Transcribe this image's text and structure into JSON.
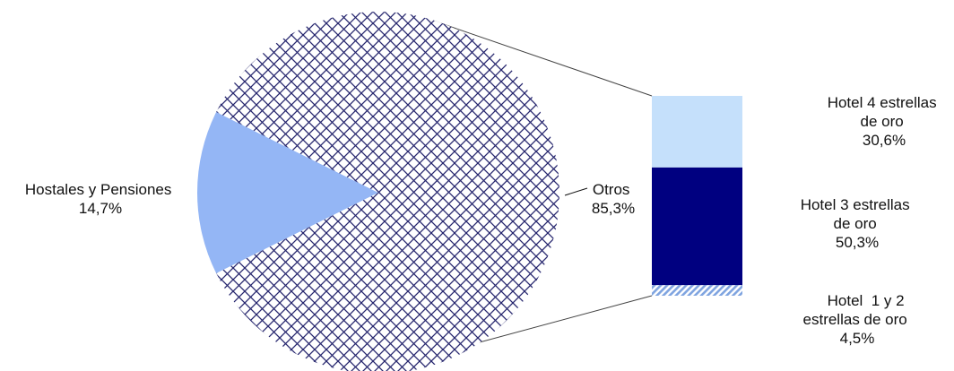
{
  "chart_data": {
    "type": "bar-of-pie",
    "title": "",
    "pie": {
      "slices": [
        {
          "label": "Hostales y Pensiones",
          "value_label": "14,7%",
          "value": 14.7,
          "color": "#94b6f5",
          "pattern": "solid"
        },
        {
          "label": "Otros",
          "value_label": "85,3%",
          "value": 85.3,
          "color": "#24246e",
          "pattern": "brick-crosshatch"
        }
      ]
    },
    "bar": {
      "segments": [
        {
          "label_lines": [
            "Hotel 4 estrellas",
            "de oro"
          ],
          "value_label": "30,6%",
          "value": 30.6,
          "color": "#c5e0fb",
          "pattern": "solid"
        },
        {
          "label_lines": [
            "Hotel 3 estrellas",
            "de oro"
          ],
          "value_label": "50,3%",
          "value": 50.3,
          "color": "#000080",
          "pattern": "solid"
        },
        {
          "label_lines": [
            "Hotel  1 y 2",
            "estrellas de oro"
          ],
          "value_label": "4,5%",
          "value": 4.5,
          "color": "#7fa4e0",
          "pattern": "diagonal-stripe"
        }
      ]
    }
  }
}
